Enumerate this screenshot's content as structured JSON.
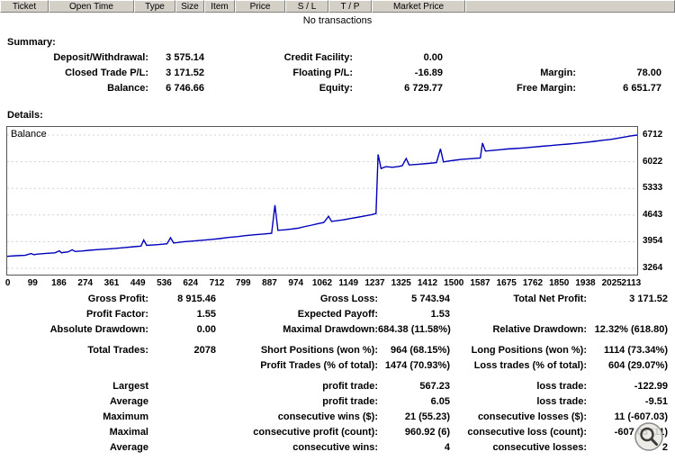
{
  "colors": {
    "accent": "#0000bb",
    "header_bg": "#d4d0c8",
    "grid": "#d0d0d0"
  },
  "table": {
    "headers": [
      "Ticket",
      "Open Time",
      "Type",
      "Size",
      "Item",
      "Price",
      "S / L",
      "T / P",
      "Market Price"
    ],
    "empty_message": "No transactions"
  },
  "summary": {
    "title": "Summary:",
    "rows": [
      [
        {
          "label": "Deposit/Withdrawal:",
          "value": "3 575.14"
        },
        {
          "label": "Credit Facility:",
          "value": "0.00"
        },
        {
          "label": "",
          "value": ""
        }
      ],
      [
        {
          "label": "Closed Trade P/L:",
          "value": "3 171.52"
        },
        {
          "label": "Floating P/L:",
          "value": "-16.89"
        },
        {
          "label": "Margin:",
          "value": "78.00"
        }
      ],
      [
        {
          "label": "Balance:",
          "value": "6 746.66"
        },
        {
          "label": "Equity:",
          "value": "6 729.77"
        },
        {
          "label": "Free Margin:",
          "value": "6 651.77"
        }
      ]
    ]
  },
  "details": {
    "title": "Details:",
    "chart_label": "Balance"
  },
  "chart_data": {
    "type": "line",
    "title": "Balance",
    "xlabel": "",
    "ylabel": "",
    "xlim": [
      0,
      2113
    ],
    "ylim": [
      3264,
      6712
    ],
    "x_ticks": [
      0,
      99,
      186,
      274,
      361,
      449,
      536,
      624,
      712,
      799,
      887,
      974,
      1062,
      1149,
      1237,
      1325,
      1412,
      1500,
      1587,
      1675,
      1762,
      1850,
      1938,
      2025,
      2113
    ],
    "y_ticks": [
      3264,
      3954,
      4643,
      5333,
      6022,
      6712
    ],
    "grid": true,
    "line_color": "#0000bb",
    "series": [
      {
        "name": "Balance",
        "points": [
          [
            0,
            3575
          ],
          [
            30,
            3590
          ],
          [
            60,
            3600
          ],
          [
            80,
            3645
          ],
          [
            90,
            3615
          ],
          [
            99,
            3630
          ],
          [
            130,
            3650
          ],
          [
            160,
            3665
          ],
          [
            175,
            3715
          ],
          [
            182,
            3665
          ],
          [
            186,
            3672
          ],
          [
            205,
            3690
          ],
          [
            218,
            3745
          ],
          [
            228,
            3700
          ],
          [
            250,
            3712
          ],
          [
            274,
            3730
          ],
          [
            305,
            3748
          ],
          [
            335,
            3762
          ],
          [
            361,
            3780
          ],
          [
            395,
            3802
          ],
          [
            425,
            3822
          ],
          [
            449,
            3840
          ],
          [
            458,
            3995
          ],
          [
            468,
            3858
          ],
          [
            495,
            3872
          ],
          [
            518,
            3885
          ],
          [
            536,
            3900
          ],
          [
            548,
            4055
          ],
          [
            558,
            3918
          ],
          [
            590,
            3948
          ],
          [
            624,
            3970
          ],
          [
            655,
            3992
          ],
          [
            685,
            4012
          ],
          [
            712,
            4032
          ],
          [
            742,
            4062
          ],
          [
            772,
            4085
          ],
          [
            799,
            4110
          ],
          [
            830,
            4132
          ],
          [
            860,
            4152
          ],
          [
            887,
            4170
          ],
          [
            898,
            4900
          ],
          [
            908,
            4248
          ],
          [
            932,
            4262
          ],
          [
            955,
            4282
          ],
          [
            974,
            4300
          ],
          [
            1000,
            4348
          ],
          [
            1022,
            4382
          ],
          [
            1042,
            4420
          ],
          [
            1062,
            4450
          ],
          [
            1078,
            4610
          ],
          [
            1088,
            4478
          ],
          [
            1110,
            4500
          ],
          [
            1130,
            4522
          ],
          [
            1149,
            4550
          ],
          [
            1172,
            4580
          ],
          [
            1200,
            4620
          ],
          [
            1222,
            4652
          ],
          [
            1237,
            4680
          ],
          [
            1244,
            6210
          ],
          [
            1254,
            5845
          ],
          [
            1270,
            5895
          ],
          [
            1292,
            5878
          ],
          [
            1312,
            5898
          ],
          [
            1325,
            5918
          ],
          [
            1338,
            6105
          ],
          [
            1348,
            5938
          ],
          [
            1380,
            5958
          ],
          [
            1412,
            5978
          ],
          [
            1440,
            6000
          ],
          [
            1453,
            6355
          ],
          [
            1463,
            6018
          ],
          [
            1482,
            6040
          ],
          [
            1500,
            6060
          ],
          [
            1522,
            6080
          ],
          [
            1552,
            6100
          ],
          [
            1587,
            6118
          ],
          [
            1594,
            6505
          ],
          [
            1604,
            6298
          ],
          [
            1632,
            6318
          ],
          [
            1660,
            6338
          ],
          [
            1675,
            6350
          ],
          [
            1702,
            6362
          ],
          [
            1732,
            6380
          ],
          [
            1762,
            6400
          ],
          [
            1792,
            6420
          ],
          [
            1822,
            6440
          ],
          [
            1850,
            6460
          ],
          [
            1882,
            6480
          ],
          [
            1912,
            6500
          ],
          [
            1938,
            6520
          ],
          [
            1970,
            6550
          ],
          [
            2000,
            6580
          ],
          [
            2025,
            6600
          ],
          [
            2062,
            6650
          ],
          [
            2092,
            6690
          ],
          [
            2113,
            6712
          ]
        ]
      }
    ]
  },
  "stats": {
    "rows": [
      [
        "Gross Profit:",
        "8 915.46",
        "Gross Loss:",
        "5 743.94",
        "Total Net Profit:",
        "3 171.52"
      ],
      [
        "Profit Factor:",
        "1.55",
        "Expected Payoff:",
        "1.53",
        "",
        ""
      ],
      [
        "Absolute Drawdown:",
        "0.00",
        "Maximal Drawdown:",
        "684.38 (11.58%)",
        "Relative Drawdown:",
        "12.32% (618.80)"
      ],
      [
        "Total Trades:",
        "2078",
        "Short Positions (won %):",
        "964 (68.15%)",
        "Long Positions (won %):",
        "1114 (73.34%)"
      ],
      [
        "",
        "",
        "Profit Trades (% of total):",
        "1474 (70.93%)",
        "Loss trades (% of total):",
        "604 (29.07%)"
      ],
      [
        "Largest",
        "",
        "profit trade:",
        "567.23",
        "loss trade:",
        "-122.99"
      ],
      [
        "Average",
        "",
        "profit trade:",
        "6.05",
        "loss trade:",
        "-9.51"
      ],
      [
        "Maximum",
        "",
        "consecutive wins ($):",
        "21 (55.23)",
        "consecutive losses ($):",
        "11 (-607.03)"
      ],
      [
        "Maximal",
        "",
        "consecutive profit (count):",
        "960.92 (6)",
        "consecutive loss (count):",
        "-607.03 (11)"
      ],
      [
        "Average",
        "",
        "consecutive wins:",
        "4",
        "consecutive losses:",
        "2"
      ]
    ]
  }
}
